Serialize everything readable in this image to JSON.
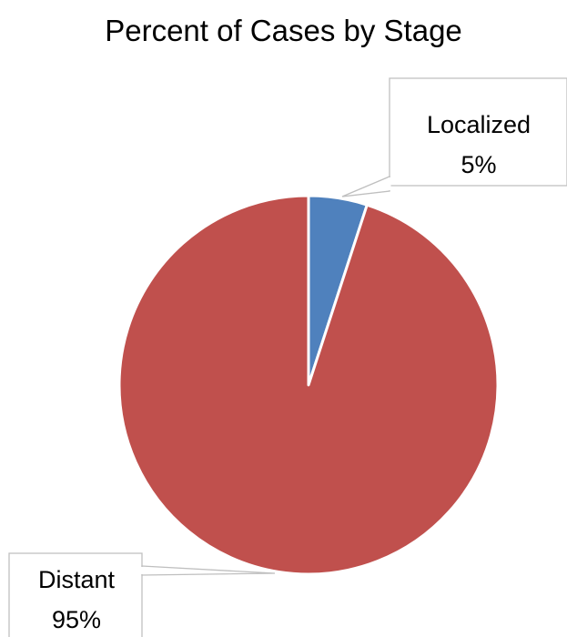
{
  "chart_data": {
    "type": "pie",
    "title": "Percent of Cases by Stage",
    "categories": [
      "Localized",
      "Distant"
    ],
    "values": [
      5,
      95
    ],
    "unit": "%",
    "colors": [
      "#4F81BD",
      "#C0504D"
    ],
    "legend": "none",
    "data_labels": [
      {
        "category": "Localized",
        "value": "5%"
      },
      {
        "category": "Distant",
        "value": "95%"
      }
    ]
  }
}
